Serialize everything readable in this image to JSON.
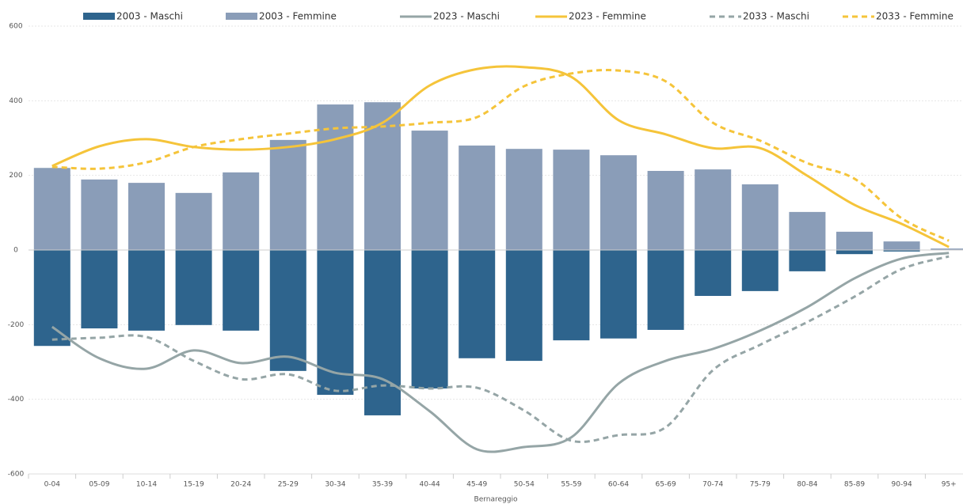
{
  "chart_data": {
    "type": "combo",
    "categories": [
      "0-04",
      "05-09",
      "10-14",
      "15-19",
      "20-24",
      "25-29",
      "30-34",
      "35-39",
      "40-44",
      "45-49",
      "50-54",
      "55-59",
      "60-64",
      "65-69",
      "70-74",
      "75-79",
      "80-84",
      "85-89",
      "90-94",
      "95+"
    ],
    "x_label": "Bernareggio",
    "ylim": [
      -600,
      600
    ],
    "yticks": [
      -600,
      -400,
      -200,
      0,
      200,
      400,
      600
    ],
    "grid": true,
    "legend": "top",
    "series": [
      {
        "name": "2003 - Maschi",
        "type": "bar",
        "color": "#2e648d",
        "values": [
          -257,
          -210,
          -216,
          -201,
          -216,
          -324,
          -388,
          -443,
          -371,
          -290,
          -297,
          -242,
          -237,
          -214,
          -123,
          -110,
          -57,
          -11,
          -4,
          -1
        ]
      },
      {
        "name": "2003 - Femmine",
        "type": "bar",
        "color": "#8a9db8",
        "values": [
          220,
          189,
          180,
          153,
          208,
          295,
          390,
          396,
          320,
          280,
          271,
          269,
          254,
          212,
          216,
          176,
          102,
          49,
          23,
          4
        ]
      },
      {
        "name": "2023 - Maschi",
        "type": "line",
        "dashed": false,
        "color": "#95a5a6",
        "values": [
          -206,
          -290,
          -318,
          -269,
          -303,
          -286,
          -329,
          -346,
          -432,
          -534,
          -528,
          -502,
          -358,
          -297,
          -265,
          -216,
          -153,
          -76,
          -23,
          -8
        ]
      },
      {
        "name": "2023 - Femmine",
        "type": "line",
        "dashed": false,
        "color": "#f5c43a",
        "values": [
          225,
          278,
          297,
          276,
          269,
          276,
          297,
          341,
          441,
          485,
          490,
          464,
          348,
          310,
          273,
          273,
          199,
          121,
          70,
          8
        ]
      },
      {
        "name": "2033 - Maschi",
        "type": "line",
        "dashed": true,
        "color": "#95a5a6",
        "values": [
          -240,
          -235,
          -233,
          -297,
          -346,
          -333,
          -377,
          -363,
          -371,
          -369,
          -430,
          -511,
          -496,
          -475,
          -322,
          -254,
          -193,
          -125,
          -51,
          -17
        ]
      },
      {
        "name": "2033 - Femmine",
        "type": "line",
        "dashed": true,
        "color": "#f5c43a",
        "values": [
          223,
          218,
          235,
          276,
          297,
          312,
          326,
          331,
          341,
          356,
          439,
          473,
          481,
          452,
          341,
          293,
          233,
          191,
          85,
          25
        ]
      }
    ]
  }
}
